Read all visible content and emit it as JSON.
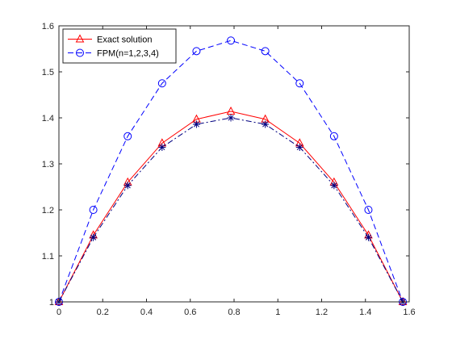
{
  "chart_data": {
    "type": "line",
    "title": "",
    "xlabel": "",
    "ylabel": "",
    "xlim": [
      0,
      1.6
    ],
    "ylim": [
      1.0,
      1.6
    ],
    "xticks": [
      0,
      0.2,
      0.4,
      0.6,
      0.8,
      1,
      1.2,
      1.4,
      1.6
    ],
    "xtick_labels": [
      "0",
      "0.2",
      "0.4",
      "0.6",
      "0.8",
      "1",
      "1.2",
      "1.4",
      "1.6"
    ],
    "yticks": [
      1,
      1.1,
      1.2,
      1.3,
      1.4,
      1.5,
      1.6
    ],
    "ytick_labels": [
      "1",
      "1.1",
      "1.2",
      "1.3",
      "1.4",
      "1.5",
      "1.6"
    ],
    "grid": false,
    "legend_position": "top-left",
    "x": [
      0,
      0.1571,
      0.3142,
      0.4712,
      0.6283,
      0.7854,
      0.9425,
      1.0996,
      1.2566,
      1.4137,
      1.5708
    ],
    "series": [
      {
        "name": "Exact solution",
        "in_legend": true,
        "values": [
          1.0,
          1.145,
          1.26,
          1.345,
          1.397,
          1.414,
          1.397,
          1.345,
          1.26,
          1.145,
          1.0
        ],
        "color": "#ff0000",
        "line_style": "solid",
        "marker": "triangle"
      },
      {
        "name": "FPM(n=1,2,3,4)",
        "in_legend": true,
        "values": [
          1.0,
          1.2,
          1.36,
          1.475,
          1.545,
          1.568,
          1.545,
          1.475,
          1.36,
          1.2,
          1.0
        ],
        "color": "#0000ff",
        "line_style": "dashed",
        "marker": "circle"
      },
      {
        "name": "",
        "in_legend": false,
        "values": [
          1.0,
          1.14,
          1.253,
          1.336,
          1.386,
          1.4,
          1.386,
          1.336,
          1.253,
          1.14,
          1.0
        ],
        "color": "#000080",
        "line_style": "dashdot",
        "marker": "star"
      }
    ]
  }
}
